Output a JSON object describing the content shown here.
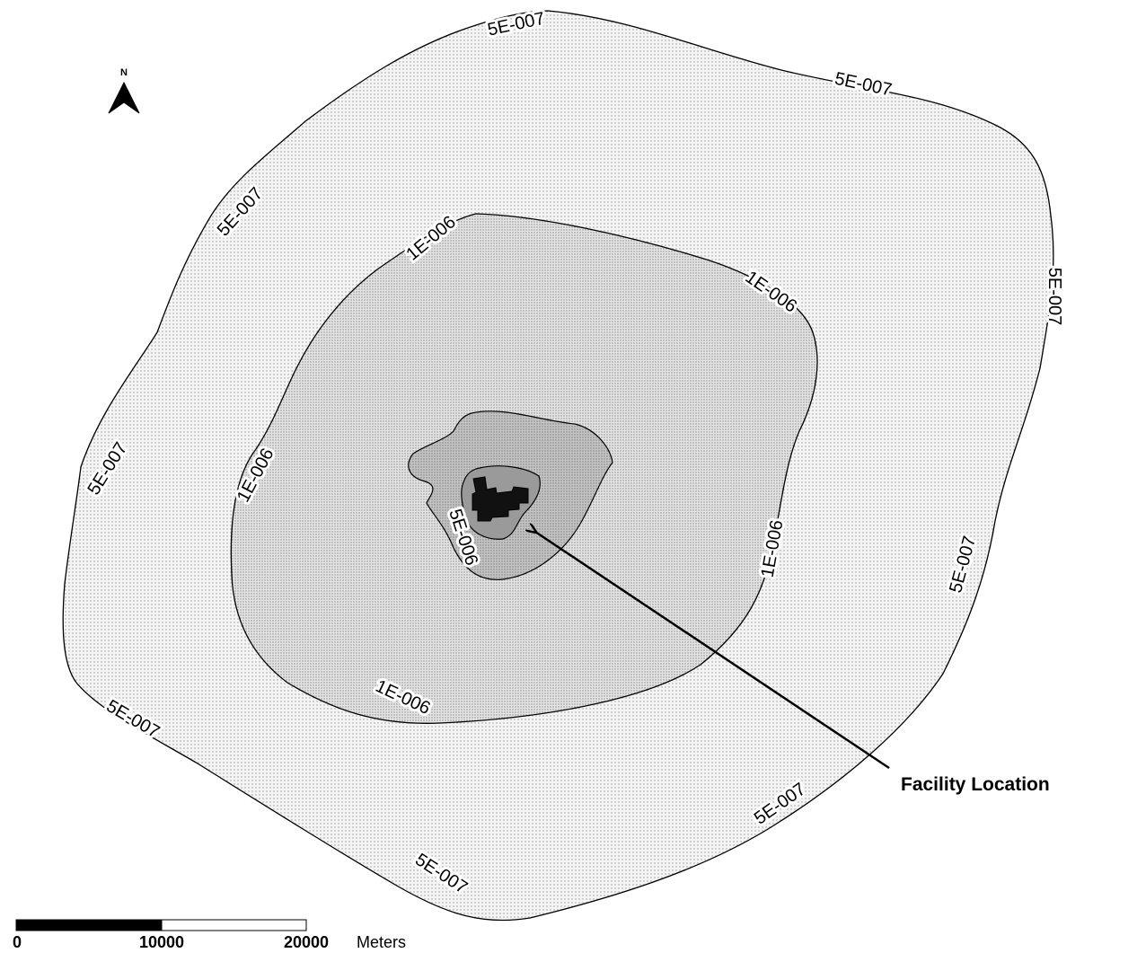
{
  "contours": {
    "outer": {
      "value": "5E-007",
      "fill_color": "#f2f2f2"
    },
    "middle": {
      "value": "1E-006",
      "fill_color": "#dcdcdc"
    },
    "inner": {
      "value": "5E-006",
      "fill_color": "#b8b8b8"
    },
    "core": {
      "fill_color": "#8f8f8f"
    }
  },
  "facility": {
    "label": "Facility Location",
    "color": "#111111"
  },
  "north_arrow": {
    "letter": "N"
  },
  "scale_bar": {
    "ticks": [
      "0",
      "10000",
      "20000"
    ],
    "unit": "Meters"
  }
}
